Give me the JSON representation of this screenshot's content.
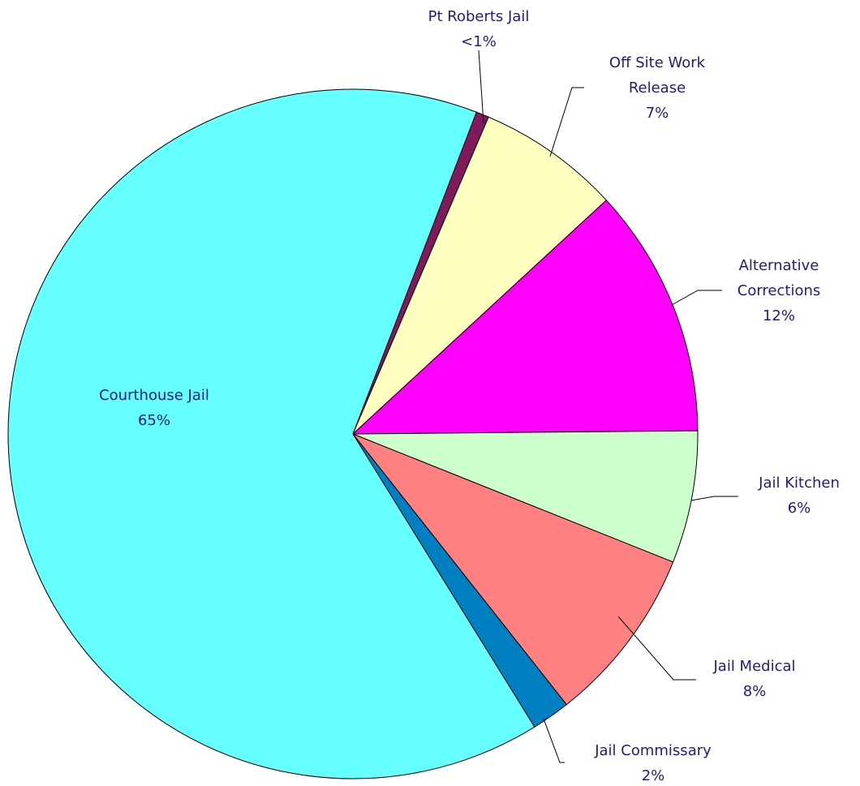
{
  "chart_data": {
    "type": "pie",
    "categories": [
      "Pt Roberts Jail",
      "Off Site Work Release",
      "Alternative Corrections",
      "Jail Kitchen",
      "Jail Medical",
      "Jail Commissary",
      "Courthouse Jail"
    ],
    "values": [
      0.6,
      6.7,
      11.7,
      6.2,
      8.3,
      1.8,
      64.6
    ],
    "value_labels": [
      "<1%",
      "7%",
      "12%",
      "6%",
      "8%",
      "2%",
      "65%"
    ],
    "colors": [
      "#801a5c",
      "#ffffc0",
      "#ff00ff",
      "#ccffcc",
      "#ff8080",
      "#0080c0",
      "#66ffff"
    ]
  }
}
